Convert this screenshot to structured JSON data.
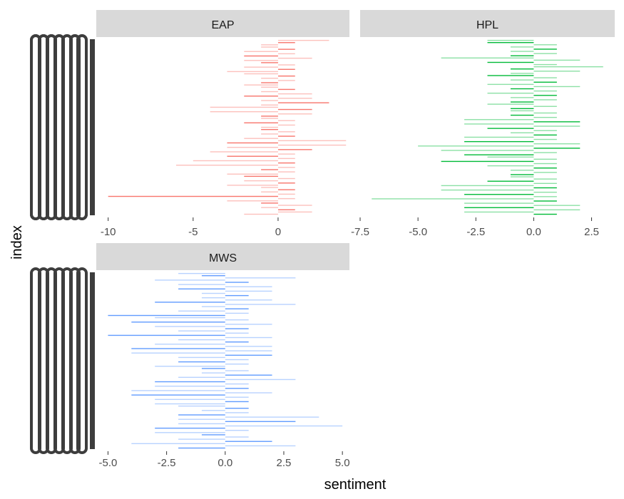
{
  "chart_data": {
    "type": "bar",
    "orientation": "horizontal",
    "faceted": true,
    "xlabel": "sentiment",
    "ylabel": "index",
    "grid": false,
    "legend": "none",
    "panel_background": "#ffffff",
    "strip_background": "#d9d9d9",
    "y_tick_color": "#3d3d3d",
    "panels": [
      {
        "name": "EAP",
        "color": "#f8766d",
        "xlim": [
          -10.7,
          4.2
        ],
        "xticks": [
          -10,
          -5,
          0
        ],
        "xtick_labels": [
          "-10",
          "-5",
          "0"
        ],
        "values": [
          3,
          1,
          -1,
          -1,
          1,
          -2,
          1,
          -2,
          2,
          -2,
          -1,
          1,
          -2,
          1,
          -3,
          -2,
          1,
          -1,
          1,
          -1,
          -2,
          -1,
          1,
          -1,
          2,
          -2,
          2,
          -1,
          3,
          -1,
          -4,
          2,
          -4,
          2,
          -1,
          -1,
          1,
          -2,
          1,
          -1,
          -1,
          1,
          -1,
          1,
          -2,
          4,
          -3,
          4,
          -3,
          2,
          -4,
          1,
          -3,
          1,
          -5,
          1,
          -6,
          1,
          -1,
          1,
          -3,
          -2,
          1,
          -2,
          1,
          -3,
          -1,
          1,
          -1,
          1,
          -10,
          1,
          -3,
          -1,
          2,
          -1,
          1,
          2,
          -2
        ]
      },
      {
        "name": "HPL",
        "color": "#00ba38",
        "xlim": [
          -7.5,
          3.5
        ],
        "xticks": [
          -7.5,
          -5.0,
          -2.5,
          0.0,
          2.5
        ],
        "xtick_labels": [
          "-7.5",
          "-5.0",
          "-2.5",
          "0.0",
          "2.5"
        ],
        "values": [
          -2,
          -2,
          1,
          -1,
          1,
          -1,
          1,
          -1,
          -4,
          2,
          -2,
          1,
          3,
          -1,
          2,
          -1,
          -2,
          1,
          -1,
          1,
          -2,
          2,
          -1,
          1,
          -2,
          1,
          -1,
          1,
          -1,
          -2,
          1,
          -1,
          -1,
          1,
          -1,
          1,
          -3,
          2,
          -3,
          2,
          -2,
          1,
          -1,
          1,
          -3,
          1,
          -3,
          2,
          -5,
          2,
          -4,
          1,
          -3,
          -2,
          1,
          -4,
          1,
          -2,
          1,
          -1,
          1,
          -1,
          -1,
          1,
          -2,
          1,
          -4,
          1,
          -4,
          1,
          -3,
          1,
          -7,
          1,
          -3,
          2,
          -3,
          2,
          -3,
          1
        ]
      },
      {
        "name": "MWS",
        "color": "#619cff",
        "xlim": [
          -5.5,
          5.3
        ],
        "xticks": [
          -5.0,
          -2.5,
          0.0,
          2.5,
          5.0
        ],
        "xtick_labels": [
          "-5.0",
          "-2.5",
          "0.0",
          "2.5",
          "5.0"
        ],
        "values": [
          -2,
          -1,
          3,
          -3,
          1,
          -2,
          2,
          -2,
          2,
          -1,
          1,
          -1,
          2,
          -3,
          3,
          -1,
          1,
          -2,
          1,
          -5,
          -3,
          1,
          -4,
          2,
          -3,
          1,
          -2,
          1,
          -5,
          2,
          -2,
          1,
          -3,
          2,
          -4,
          2,
          -4,
          2,
          -2,
          1,
          -2,
          1,
          -3,
          -1,
          1,
          -1,
          2,
          -2,
          3,
          -3,
          1,
          -3,
          1,
          -4,
          2,
          -4,
          1,
          -3,
          1,
          -3,
          -2,
          1,
          -1,
          1,
          -2,
          4,
          -2,
          3,
          -2,
          5,
          -3,
          1,
          -3,
          -1,
          1,
          -2,
          2,
          -4,
          3,
          -2
        ]
      }
    ]
  }
}
